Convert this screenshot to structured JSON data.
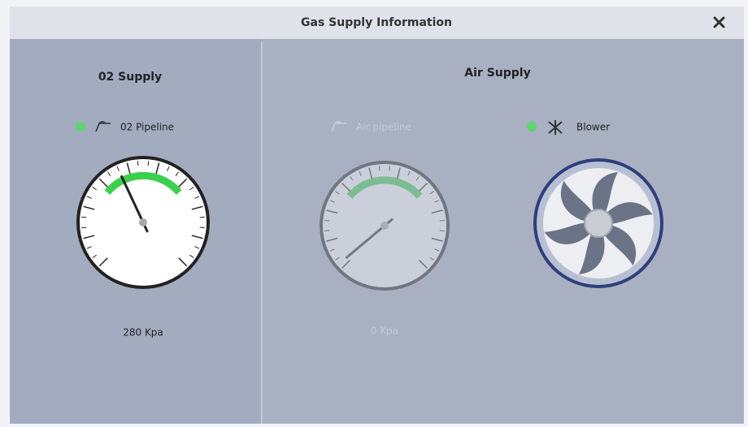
{
  "dialog": {
    "title": "Gas Supply Information",
    "o2_supply": {
      "heading": "02 Supply",
      "source": "02 Pipeline",
      "reading": "280 Kpa"
    },
    "air_supply": {
      "heading": "Air Supply",
      "pipeline": {
        "source": "Air pipeline",
        "reading": "0 Kpa"
      },
      "blower": {
        "source": "Blower"
      }
    }
  }
}
